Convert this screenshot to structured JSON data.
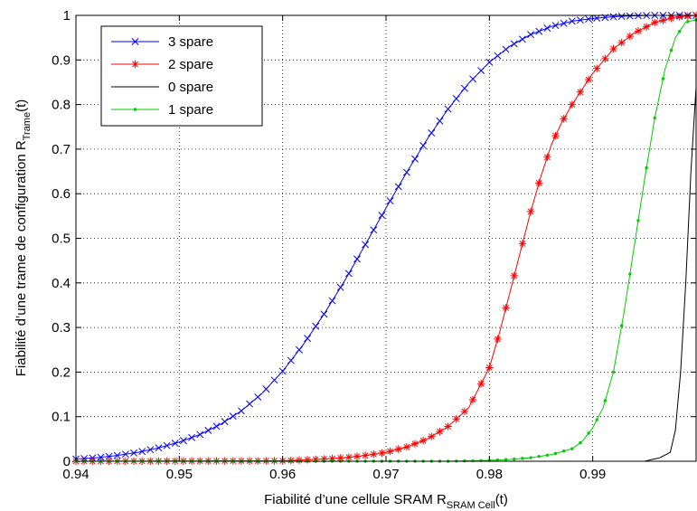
{
  "chart_data": {
    "type": "line",
    "title": "",
    "xlabel": {
      "prefix": "Fiabilité d’une cellule SRAM R",
      "sub": "SRAM Cell",
      "suffix": "(t)"
    },
    "ylabel": {
      "prefix": "Fiabilité d’une trame de configuration R",
      "sub": "Trame",
      "suffix": "(t)"
    },
    "xlim": [
      0.94,
      1.0
    ],
    "ylim": [
      0,
      1
    ],
    "grid": true,
    "legend_position": "top-left",
    "x_ticks": [
      0.94,
      0.95,
      0.96,
      0.97,
      0.98,
      0.99
    ],
    "x_tick_labels": [
      "0.94",
      "0.95",
      "0.96",
      "0.97",
      "0.98",
      "0.99"
    ],
    "y_ticks": [
      0,
      0.1,
      0.2,
      0.3,
      0.4,
      0.5,
      0.6,
      0.7,
      0.8,
      0.9,
      1
    ],
    "y_tick_labels": [
      "0",
      "0.1",
      "0.2",
      "0.3",
      "0.4",
      "0.5",
      "0.6",
      "0.7",
      "0.8",
      "0.9",
      "1"
    ],
    "series": [
      {
        "name": "3 spare",
        "color": "#0000ff",
        "marker": "x",
        "points": [
          [
            0.94,
            0.005
          ],
          [
            0.942,
            0.008
          ],
          [
            0.944,
            0.013
          ],
          [
            0.946,
            0.02
          ],
          [
            0.948,
            0.03
          ],
          [
            0.95,
            0.043
          ],
          [
            0.952,
            0.06
          ],
          [
            0.954,
            0.083
          ],
          [
            0.956,
            0.113
          ],
          [
            0.958,
            0.152
          ],
          [
            0.96,
            0.202
          ],
          [
            0.962,
            0.262
          ],
          [
            0.964,
            0.33
          ],
          [
            0.966,
            0.405
          ],
          [
            0.968,
            0.486
          ],
          [
            0.97,
            0.568
          ],
          [
            0.972,
            0.648
          ],
          [
            0.974,
            0.723
          ],
          [
            0.976,
            0.79
          ],
          [
            0.978,
            0.848
          ],
          [
            0.98,
            0.895
          ],
          [
            0.982,
            0.931
          ],
          [
            0.984,
            0.957
          ],
          [
            0.986,
            0.975
          ],
          [
            0.988,
            0.987
          ],
          [
            0.99,
            0.993
          ],
          [
            0.992,
            0.997
          ],
          [
            0.994,
            0.999
          ],
          [
            0.996,
            1.0
          ],
          [
            0.998,
            1.0
          ],
          [
            1.0,
            1.0
          ]
        ]
      },
      {
        "name": "2 spare",
        "color": "#ff0000",
        "marker": "*",
        "points": [
          [
            0.94,
            0.0
          ],
          [
            0.96,
            0.001
          ],
          [
            0.962,
            0.003
          ],
          [
            0.964,
            0.005
          ],
          [
            0.966,
            0.008
          ],
          [
            0.968,
            0.013
          ],
          [
            0.97,
            0.02
          ],
          [
            0.972,
            0.032
          ],
          [
            0.974,
            0.05
          ],
          [
            0.976,
            0.078
          ],
          [
            0.978,
            0.12
          ],
          [
            0.98,
            0.21
          ],
          [
            0.981,
            0.29
          ],
          [
            0.982,
            0.38
          ],
          [
            0.983,
            0.47
          ],
          [
            0.984,
            0.56
          ],
          [
            0.985,
            0.64
          ],
          [
            0.986,
            0.71
          ],
          [
            0.987,
            0.76
          ],
          [
            0.988,
            0.8
          ],
          [
            0.99,
            0.87
          ],
          [
            0.992,
            0.925
          ],
          [
            0.994,
            0.96
          ],
          [
            0.996,
            0.984
          ],
          [
            0.998,
            0.996
          ],
          [
            1.0,
            1.0
          ]
        ]
      },
      {
        "name": "0 spare",
        "color": "#000000",
        "marker": "none",
        "points": [
          [
            0.94,
            0.0
          ],
          [
            0.995,
            0.0
          ],
          [
            0.9965,
            0.008
          ],
          [
            0.9975,
            0.02
          ],
          [
            0.998,
            0.07
          ],
          [
            0.9985,
            0.2
          ],
          [
            0.999,
            0.4
          ],
          [
            0.9995,
            0.65
          ],
          [
            1.0,
            0.84
          ]
        ]
      },
      {
        "name": "1 spare",
        "color": "#00cc00",
        "marker": "dot",
        "points": [
          [
            0.94,
            0.0
          ],
          [
            0.976,
            0.0
          ],
          [
            0.98,
            0.002
          ],
          [
            0.982,
            0.004
          ],
          [
            0.984,
            0.008
          ],
          [
            0.986,
            0.015
          ],
          [
            0.988,
            0.028
          ],
          [
            0.989,
            0.045
          ],
          [
            0.99,
            0.075
          ],
          [
            0.991,
            0.12
          ],
          [
            0.992,
            0.2
          ],
          [
            0.993,
            0.33
          ],
          [
            0.994,
            0.48
          ],
          [
            0.995,
            0.63
          ],
          [
            0.996,
            0.77
          ],
          [
            0.997,
            0.88
          ],
          [
            0.998,
            0.95
          ],
          [
            0.999,
            0.985
          ],
          [
            1.0,
            0.99
          ]
        ]
      }
    ]
  }
}
